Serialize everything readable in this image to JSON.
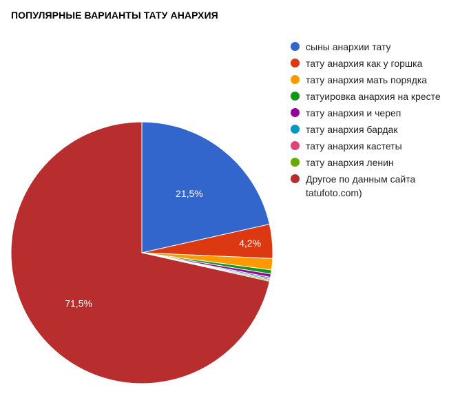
{
  "chart_data": {
    "type": "pie",
    "title": "ПОПУЛЯРНЫЕ ВАРИАНТЫ ТАТУ АНАРХИЯ",
    "legend_position": "right",
    "slices": [
      {
        "label": "сыны анархии тату",
        "value": 21.5,
        "value_label": "21,5%",
        "color": "#3366cc"
      },
      {
        "label": "тату анархия как у горшка",
        "value": 4.2,
        "value_label": "4,2%",
        "color": "#dc3912"
      },
      {
        "label": "тату анархия мать порядка",
        "value": 1.4,
        "value_label": "",
        "color": "#ff9900"
      },
      {
        "label": "татуировка анархия на кресте",
        "value": 0.5,
        "value_label": "",
        "color": "#109618"
      },
      {
        "label": "тату анархия и череп",
        "value": 0.4,
        "value_label": "",
        "color": "#990099"
      },
      {
        "label": "тату анархия бардак",
        "value": 0.2,
        "value_label": "",
        "color": "#0099c6"
      },
      {
        "label": "тату анархия кастеты",
        "value": 0.15,
        "value_label": "",
        "color": "#dd4477"
      },
      {
        "label": "тату анархия ленин",
        "value": 0.15,
        "value_label": "",
        "color": "#66aa00"
      },
      {
        "label": "Другое по данным сайта tatufoto.com)",
        "value": 71.5,
        "value_label": "71,5%",
        "color": "#b82e2e"
      }
    ]
  }
}
